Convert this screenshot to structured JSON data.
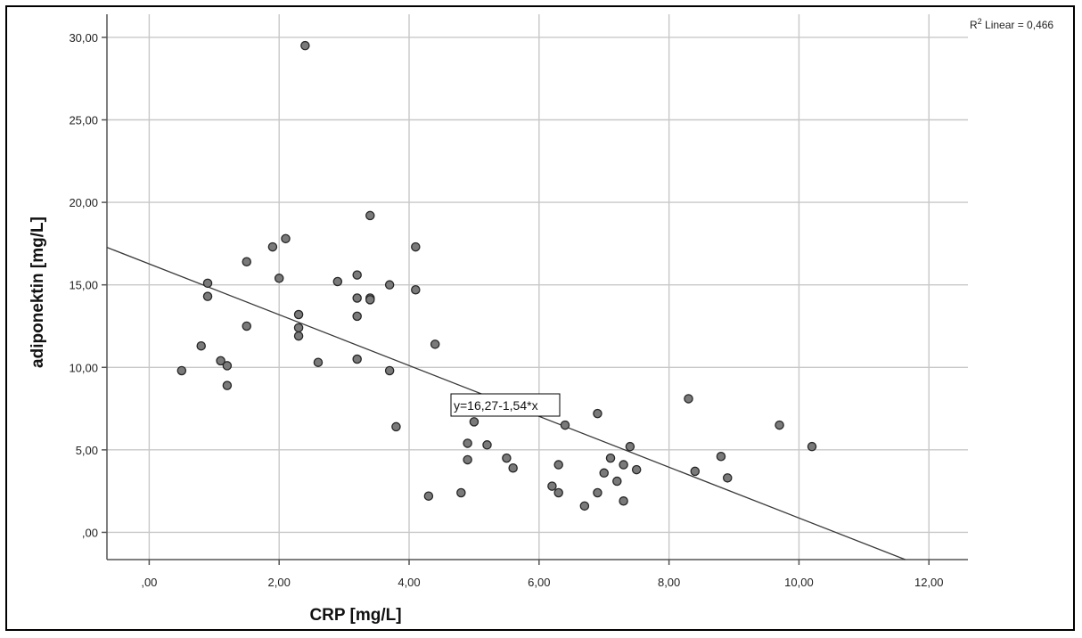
{
  "chart_data": {
    "type": "scatter",
    "xlabel": "CRP [mg/L]",
    "ylabel": "adiponektin [mg/L]",
    "xlim": [
      -0.65,
      12.6
    ],
    "ylim": [
      -1.65,
      31.4
    ],
    "x_ticks": [
      ",00",
      "2,00",
      "4,00",
      "6,00",
      "8,00",
      "10,00",
      "12,00"
    ],
    "y_ticks": [
      ",00",
      "5,00",
      "10,00",
      "15,00",
      "20,00",
      "25,00",
      "30,00"
    ],
    "grid": true,
    "r2_label": {
      "prefix": "R",
      "superscript": "2",
      "suffix": " Linear = 0,466"
    },
    "fit_line": {
      "equation": "y=16,27-1,54*x",
      "intercept": 16.27,
      "slope": -1.54
    },
    "points": [
      [
        0.5,
        9.8
      ],
      [
        0.8,
        11.3
      ],
      [
        0.9,
        15.1
      ],
      [
        0.9,
        14.3
      ],
      [
        1.1,
        10.4
      ],
      [
        1.2,
        10.1
      ],
      [
        1.2,
        8.9
      ],
      [
        1.5,
        16.4
      ],
      [
        1.5,
        12.5
      ],
      [
        1.9,
        17.3
      ],
      [
        2.0,
        15.4
      ],
      [
        2.1,
        17.8
      ],
      [
        2.3,
        13.2
      ],
      [
        2.3,
        12.4
      ],
      [
        2.3,
        11.9
      ],
      [
        2.4,
        29.5
      ],
      [
        2.6,
        10.3
      ],
      [
        2.9,
        15.2
      ],
      [
        3.2,
        15.6
      ],
      [
        3.2,
        14.2
      ],
      [
        3.2,
        13.1
      ],
      [
        3.2,
        10.5
      ],
      [
        3.4,
        19.2
      ],
      [
        3.4,
        14.2
      ],
      [
        3.4,
        14.1
      ],
      [
        3.7,
        15.0
      ],
      [
        3.7,
        9.8
      ],
      [
        3.8,
        6.4
      ],
      [
        4.1,
        17.3
      ],
      [
        4.1,
        14.7
      ],
      [
        4.3,
        2.2
      ],
      [
        4.4,
        11.4
      ],
      [
        4.8,
        2.4
      ],
      [
        4.9,
        5.4
      ],
      [
        4.9,
        4.4
      ],
      [
        5.0,
        6.7
      ],
      [
        5.2,
        5.3
      ],
      [
        5.5,
        4.5
      ],
      [
        5.6,
        3.9
      ],
      [
        6.2,
        2.8
      ],
      [
        6.3,
        4.1
      ],
      [
        6.3,
        2.4
      ],
      [
        6.4,
        6.5
      ],
      [
        6.7,
        1.6
      ],
      [
        6.9,
        7.2
      ],
      [
        6.9,
        2.4
      ],
      [
        7.0,
        3.6
      ],
      [
        7.1,
        4.5
      ],
      [
        7.2,
        3.1
      ],
      [
        7.3,
        4.1
      ],
      [
        7.3,
        1.9
      ],
      [
        7.4,
        5.2
      ],
      [
        7.5,
        3.8
      ],
      [
        8.3,
        8.1
      ],
      [
        8.4,
        3.7
      ],
      [
        8.8,
        4.6
      ],
      [
        8.9,
        3.3
      ],
      [
        9.7,
        6.5
      ],
      [
        10.2,
        5.2
      ]
    ]
  }
}
